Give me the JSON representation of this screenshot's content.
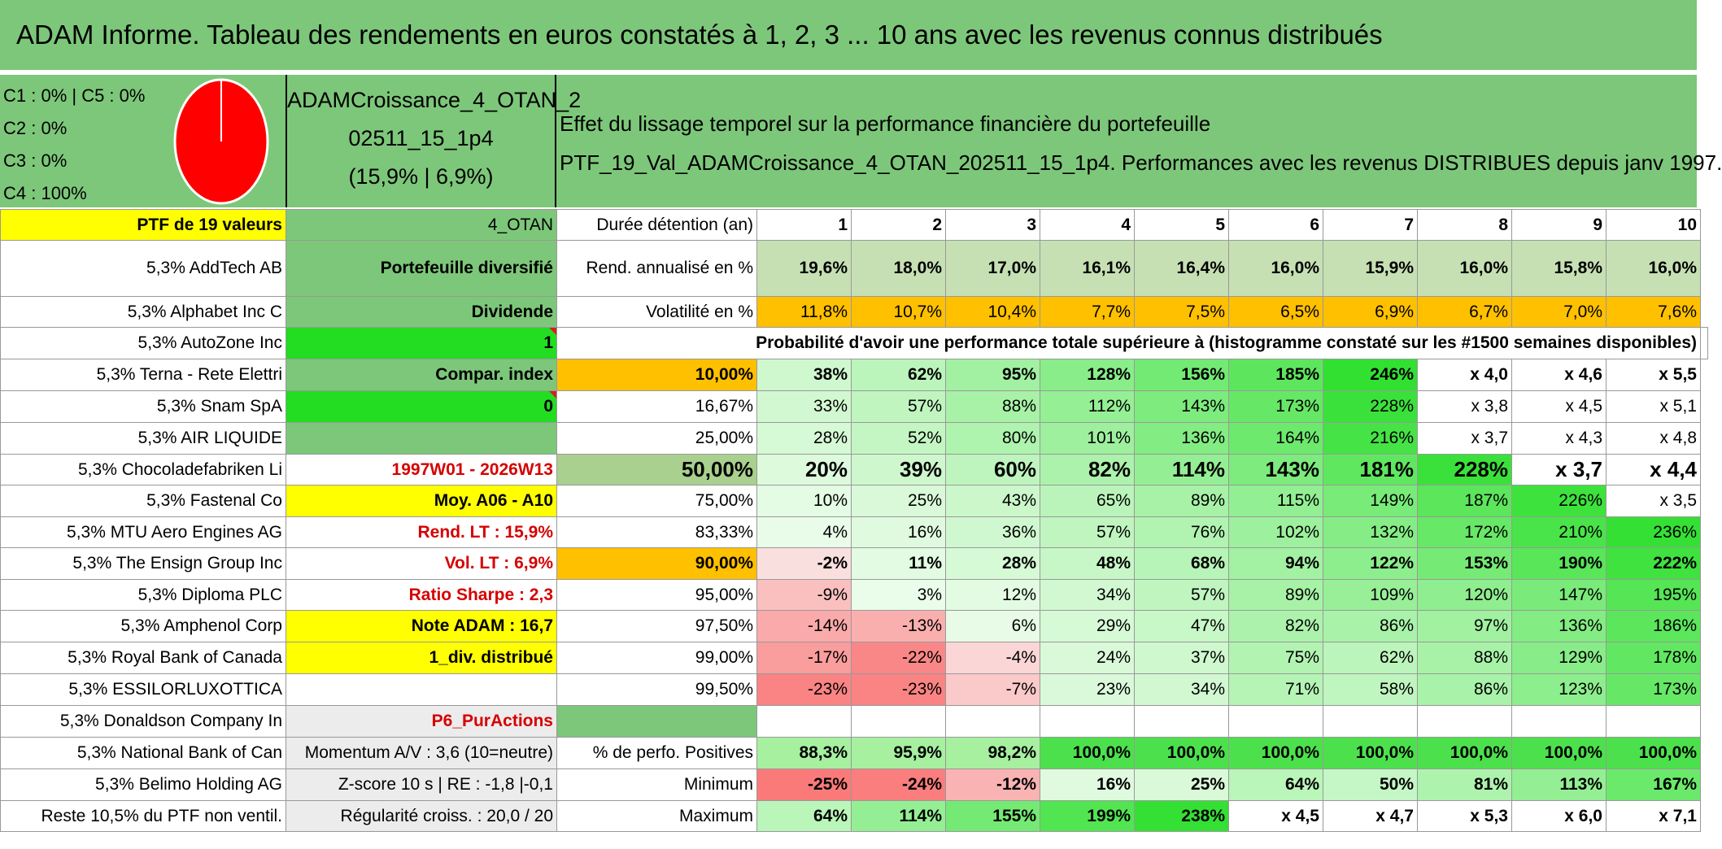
{
  "title": "ADAM Informe. Tableau des rendements en euros constatés à 1, 2, 3 ... 10 ans avec les revenus connus distribués",
  "caps": [
    "C1 : 0% | C5 : 0%",
    "C2 : 0%",
    "C3 : 0%",
    "C4 : 100%"
  ],
  "portfolio": {
    "name_line1": "ADAMCroissance_4_OTAN_2",
    "name_line2": "02511_15_1p4",
    "name_line3": "(15,9% | 6,9%)"
  },
  "effet": {
    "line1": "Effet du lissage temporel sur la performance financière du portefeuille",
    "line2": "PTF_19_Val_ADAMCroissance_4_OTAN_202511_15_1p4. Performances avec les revenus DISTRIBUES depuis janv 1997."
  },
  "colors": {
    "green": "#7dc77a",
    "yellow": "#ffff00",
    "orange": "#ffc000",
    "bright_green": "#22dd22",
    "pie_red": "#ff0000"
  },
  "header": {
    "ptf": "PTF de 19 valeurs",
    "otan": "4_OTAN",
    "duree": "Durée détention (an)",
    "years": [
      "1",
      "2",
      "3",
      "4",
      "5",
      "6",
      "7",
      "8",
      "9",
      "10"
    ]
  },
  "holdings": [
    "5,3% AddTech AB",
    "5,3% Alphabet Inc C",
    "5,3% AutoZone Inc",
    "5,3% Terna - Rete Elettri",
    "5,3% Snam SpA",
    "5,3% AIR LIQUIDE",
    "5,3% Chocoladefabriken Li",
    "5,3% Fastenal Co",
    "5,3% MTU Aero Engines AG",
    "5,3% The Ensign Group Inc",
    "5,3% Diploma PLC",
    "5,3% Amphenol Corp",
    "5,3% Royal Bank of Canada",
    "5,3% ESSILORLUXOTTICA",
    "5,3% Donaldson Company In",
    "5,3% National Bank of Can",
    "5,3% Belimo Holding AG",
    "Reste 10,5% du PTF non ventil."
  ],
  "info": [
    "Portefeuille diversifié",
    "Dividende",
    "1",
    "Compar. index",
    "0",
    "",
    "1997W01 - 2026W13",
    "Moy. A06 - A10",
    "Rend. LT : 15,9%",
    "Vol. LT : 6,9%",
    "Ratio Sharpe : 2,3",
    "Note ADAM : 16,7",
    "1_div. distribué",
    "",
    "P6_PurActions",
    "Momentum A/V : 3,6 (10=neutre)",
    "Z-score 10 s | RE : -1,8 |-0,1",
    "Régularité croiss. : 20,0 / 20"
  ],
  "rend": {
    "label": "Rend. annualisé en %",
    "values": [
      "19,6%",
      "18,0%",
      "17,0%",
      "16,1%",
      "16,4%",
      "16,0%",
      "15,9%",
      "16,0%",
      "15,8%",
      "16,0%"
    ]
  },
  "vol": {
    "label": "Volatilité en %",
    "values": [
      "11,8%",
      "10,7%",
      "10,4%",
      "7,7%",
      "7,5%",
      "6,5%",
      "6,9%",
      "6,7%",
      "7,0%",
      "7,6%"
    ]
  },
  "prob_header": "Probabilité d'avoir une performance totale supérieure à (histogramme constaté sur les #1500 semaines disponibles)",
  "prob_rows": [
    {
      "p": "10,00%",
      "v": [
        "38%",
        "62%",
        "95%",
        "128%",
        "156%",
        "185%",
        "246%",
        "x 4,0",
        "x 4,6",
        "x 5,5"
      ]
    },
    {
      "p": "16,67%",
      "v": [
        "33%",
        "57%",
        "88%",
        "112%",
        "143%",
        "173%",
        "228%",
        "x 3,8",
        "x 4,5",
        "x 5,1"
      ]
    },
    {
      "p": "25,00%",
      "v": [
        "28%",
        "52%",
        "80%",
        "101%",
        "136%",
        "164%",
        "216%",
        "x 3,7",
        "x 4,3",
        "x 4,8"
      ]
    },
    {
      "p": "50,00%",
      "v": [
        "20%",
        "39%",
        "60%",
        "82%",
        "114%",
        "143%",
        "181%",
        "228%",
        "x 3,7",
        "x 4,4"
      ]
    },
    {
      "p": "75,00%",
      "v": [
        "10%",
        "25%",
        "43%",
        "65%",
        "89%",
        "115%",
        "149%",
        "187%",
        "226%",
        "x 3,5"
      ]
    },
    {
      "p": "83,33%",
      "v": [
        "4%",
        "16%",
        "36%",
        "57%",
        "76%",
        "102%",
        "132%",
        "172%",
        "210%",
        "236%"
      ]
    },
    {
      "p": "90,00%",
      "v": [
        "-2%",
        "11%",
        "28%",
        "48%",
        "68%",
        "94%",
        "122%",
        "153%",
        "190%",
        "222%"
      ]
    },
    {
      "p": "95,00%",
      "v": [
        "-9%",
        "3%",
        "12%",
        "34%",
        "57%",
        "89%",
        "109%",
        "120%",
        "147%",
        "195%"
      ]
    },
    {
      "p": "97,50%",
      "v": [
        "-14%",
        "-13%",
        "6%",
        "29%",
        "47%",
        "82%",
        "86%",
        "97%",
        "136%",
        "186%"
      ]
    },
    {
      "p": "99,00%",
      "v": [
        "-17%",
        "-22%",
        "-4%",
        "24%",
        "37%",
        "75%",
        "62%",
        "88%",
        "129%",
        "178%"
      ]
    },
    {
      "p": "99,50%",
      "v": [
        "-23%",
        "-23%",
        "-7%",
        "23%",
        "34%",
        "71%",
        "58%",
        "86%",
        "123%",
        "173%"
      ]
    }
  ],
  "positives": {
    "label": "% de perfo. Positives",
    "values": [
      "88,3%",
      "95,9%",
      "98,2%",
      "100,0%",
      "100,0%",
      "100,0%",
      "100,0%",
      "100,0%",
      "100,0%",
      "100,0%"
    ]
  },
  "minimum": {
    "label": "Minimum",
    "values": [
      "-25%",
      "-24%",
      "-12%",
      "16%",
      "25%",
      "64%",
      "50%",
      "81%",
      "113%",
      "167%"
    ]
  },
  "maximum": {
    "label": "Maximum",
    "values": [
      "64%",
      "114%",
      "155%",
      "199%",
      "238%",
      "x 4,5",
      "x 4,7",
      "x 5,3",
      "x 6,0",
      "x 7,1"
    ]
  }
}
